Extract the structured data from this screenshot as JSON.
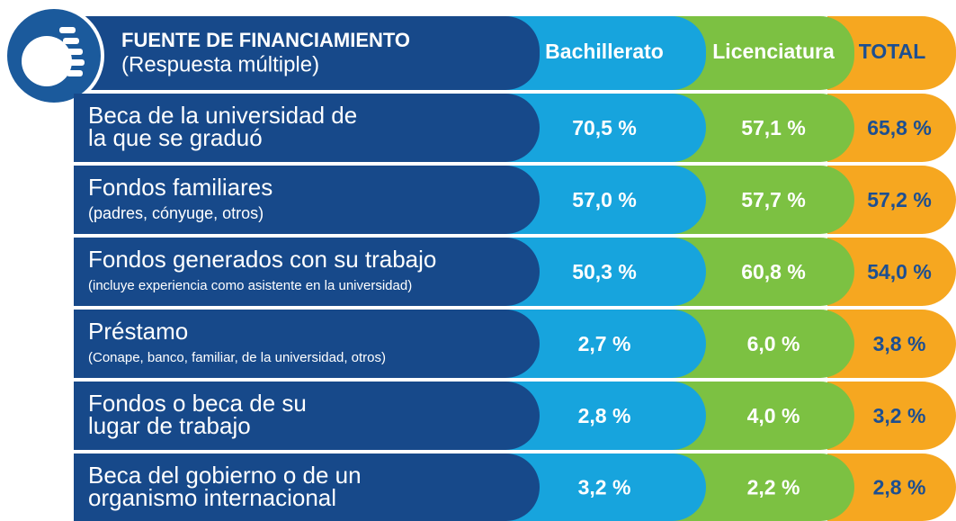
{
  "header": {
    "title": "FUENTE DE FINANCIAMIENTO",
    "subtitle": "(Respuesta múltiple)",
    "columns": [
      "Bachillerato",
      "Licenciatura",
      "TOTAL"
    ]
  },
  "rows": [
    {
      "lines": [
        "Beca de la universidad de",
        "la que se graduó"
      ],
      "values": [
        "70,5 %",
        "57,1 %",
        "65,8 %"
      ]
    },
    {
      "lines": [
        "Fondos familiares"
      ],
      "note": "(padres, cónyuge, otros)",
      "values": [
        "57,0 %",
        "57,7 %",
        "57,2 %"
      ]
    },
    {
      "lines": [
        "Fondos generados con su trabajo"
      ],
      "note": "(incluye experiencia como asistente en la universidad)",
      "values": [
        "50,3 %",
        "60,8 %",
        "54,0 %"
      ]
    },
    {
      "lines": [
        "Préstamo"
      ],
      "note": "(Conape, banco, familiar, de la universidad, otros)",
      "values": [
        "2,7 %",
        "6,0 %",
        "3,8 %"
      ]
    },
    {
      "lines": [
        "Fondos o beca de su",
        "lugar de trabajo"
      ],
      "values": [
        "2,8 %",
        "4,0 %",
        "3,2 %"
      ]
    },
    {
      "lines": [
        "Beca del gobierno o de un",
        "organismo internacional"
      ],
      "values": [
        "3,2 %",
        "2,2 %",
        "2,8 %"
      ]
    }
  ]
}
